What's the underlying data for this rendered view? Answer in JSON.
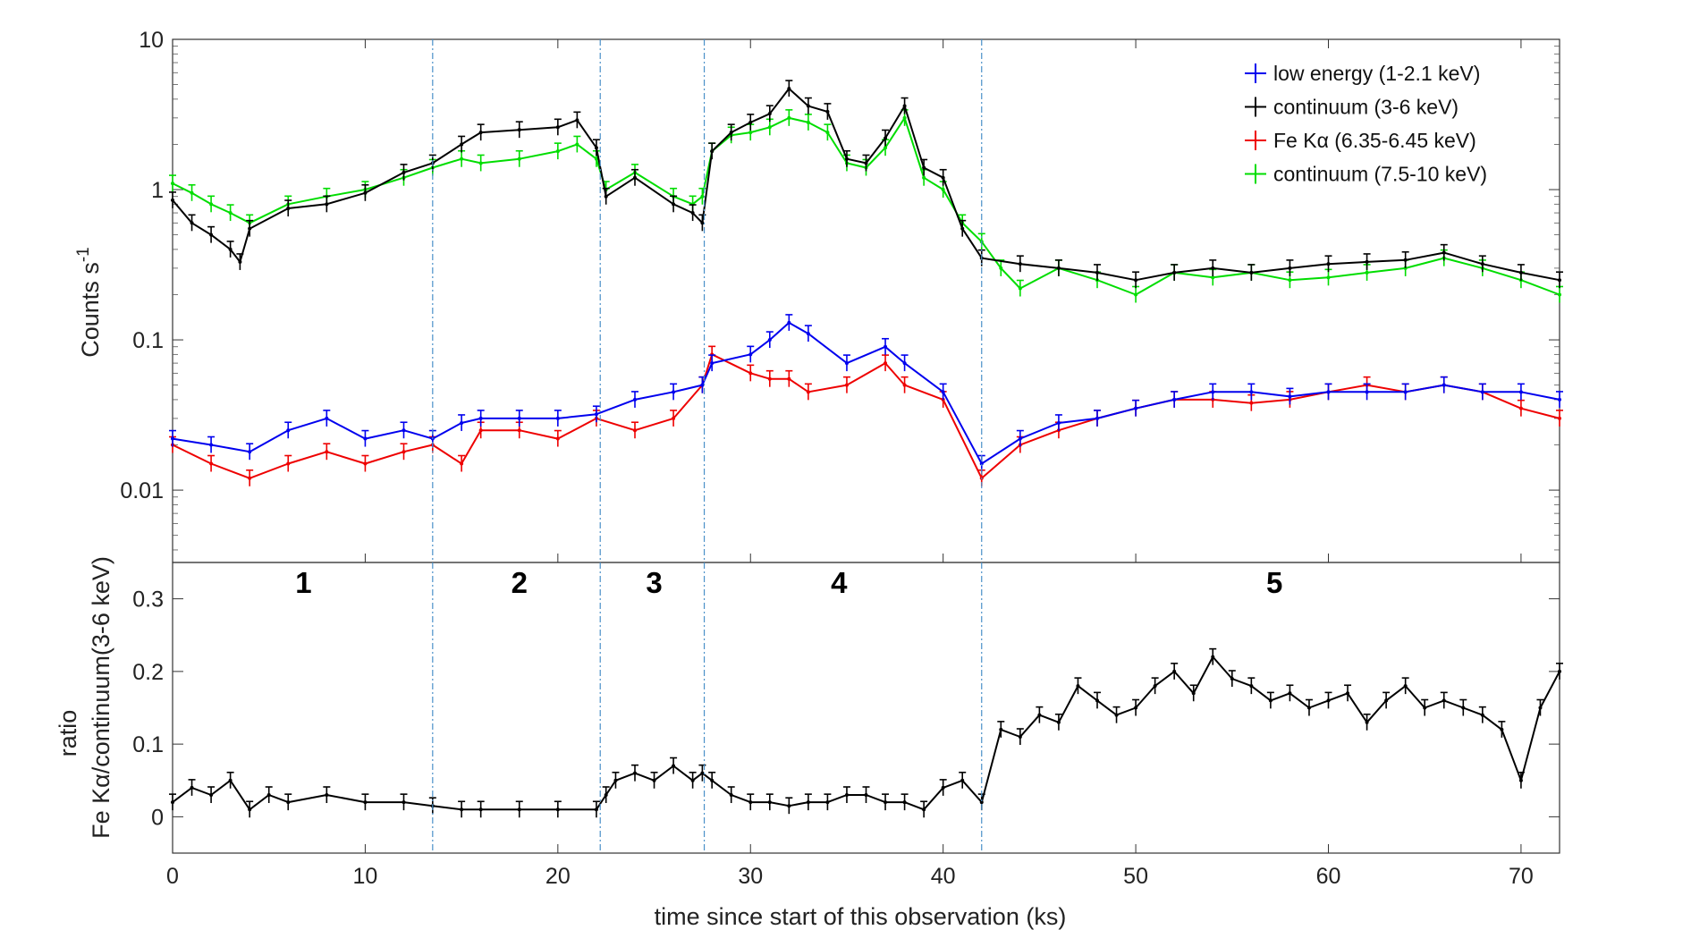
{
  "chart_data": {
    "type": "line",
    "xlabel": "time since start of this observation (ks)",
    "x_ticks": [
      0,
      10,
      20,
      30,
      40,
      50,
      60,
      70
    ],
    "xlim": [
      0,
      72
    ],
    "top_panel": {
      "ylabel": "Counts s",
      "ylabel_superscript": "-1",
      "yscale": "log",
      "ylim": [
        0.0033,
        10
      ],
      "y_ticks": [
        {
          "value": 0.01,
          "label": "0.01"
        },
        {
          "value": 0.1,
          "label": "0.1"
        },
        {
          "value": 1,
          "label": "1"
        },
        {
          "value": 10,
          "label": "10"
        }
      ],
      "legend_position": "top-right",
      "series": [
        {
          "name": "low energy (1-2.1 keV)",
          "color": "#0000ee",
          "x": [
            0,
            2,
            4,
            6,
            8,
            10,
            12,
            13.5,
            15,
            16,
            18,
            20,
            22,
            24,
            26,
            27.5,
            28,
            30,
            31,
            32,
            33,
            35,
            37,
            38,
            40,
            42,
            44,
            46,
            48,
            50,
            52,
            54,
            56,
            58,
            60,
            62,
            64,
            66,
            68,
            70,
            72
          ],
          "y": [
            0.022,
            0.02,
            0.018,
            0.025,
            0.03,
            0.022,
            0.025,
            0.022,
            0.028,
            0.03,
            0.03,
            0.03,
            0.032,
            0.04,
            0.045,
            0.05,
            0.07,
            0.08,
            0.1,
            0.13,
            0.11,
            0.07,
            0.09,
            0.07,
            0.045,
            0.015,
            0.022,
            0.028,
            0.03,
            0.035,
            0.04,
            0.045,
            0.045,
            0.042,
            0.045,
            0.045,
            0.045,
            0.05,
            0.045,
            0.045,
            0.04
          ]
        },
        {
          "name": "continuum (3-6 keV)",
          "color": "#000000",
          "x": [
            0,
            1,
            2,
            3,
            3.5,
            4,
            6,
            8,
            10,
            12,
            13.5,
            15,
            16,
            18,
            20,
            21,
            22,
            22.5,
            24,
            26,
            27,
            27.5,
            28,
            29,
            30,
            31,
            32,
            33,
            34,
            35,
            36,
            37,
            38,
            39,
            40,
            41,
            42,
            44,
            46,
            48,
            50,
            52,
            54,
            56,
            58,
            60,
            62,
            64,
            66,
            68,
            70,
            72
          ],
          "y": [
            0.85,
            0.6,
            0.5,
            0.4,
            0.33,
            0.55,
            0.75,
            0.8,
            0.95,
            1.3,
            1.5,
            2.0,
            2.4,
            2.5,
            2.6,
            2.9,
            1.9,
            0.9,
            1.2,
            0.8,
            0.7,
            0.6,
            1.8,
            2.4,
            2.8,
            3.2,
            4.7,
            3.6,
            3.3,
            1.6,
            1.5,
            2.2,
            3.6,
            1.4,
            1.2,
            0.55,
            0.35,
            0.32,
            0.3,
            0.28,
            0.25,
            0.28,
            0.3,
            0.28,
            0.3,
            0.32,
            0.33,
            0.34,
            0.38,
            0.32,
            0.28,
            0.25
          ]
        },
        {
          "name": "Fe Kα (6.35-6.45 keV)",
          "color": "#ee0000",
          "x": [
            0,
            2,
            4,
            6,
            8,
            10,
            12,
            13.5,
            15,
            16,
            18,
            20,
            22,
            24,
            26,
            27.5,
            28,
            30,
            31,
            32,
            33,
            35,
            37,
            38,
            40,
            42,
            44,
            46,
            48,
            50,
            52,
            54,
            56,
            58,
            60,
            62,
            64,
            66,
            68,
            70,
            72
          ],
          "y": [
            0.02,
            0.015,
            0.012,
            0.015,
            0.018,
            0.015,
            0.018,
            0.02,
            0.015,
            0.025,
            0.025,
            0.022,
            0.03,
            0.025,
            0.03,
            0.05,
            0.08,
            0.06,
            0.055,
            0.055,
            0.045,
            0.05,
            0.07,
            0.05,
            0.04,
            0.012,
            0.02,
            0.025,
            0.03,
            0.035,
            0.04,
            0.04,
            0.038,
            0.04,
            0.045,
            0.05,
            0.045,
            0.05,
            0.045,
            0.035,
            0.03
          ]
        },
        {
          "name": "continuum (7.5-10 keV)",
          "color": "#00dd00",
          "x": [
            0,
            1,
            2,
            3,
            4,
            6,
            8,
            10,
            12,
            13.5,
            15,
            16,
            18,
            20,
            21,
            22,
            22.5,
            24,
            26,
            27,
            27.5,
            28,
            29,
            30,
            31,
            32,
            33,
            34,
            35,
            36,
            37,
            38,
            39,
            40,
            41,
            42,
            43,
            44,
            46,
            48,
            50,
            52,
            54,
            56,
            58,
            60,
            62,
            64,
            66,
            68,
            70,
            72
          ],
          "y": [
            1.1,
            0.95,
            0.8,
            0.7,
            0.6,
            0.8,
            0.9,
            1.0,
            1.2,
            1.4,
            1.6,
            1.5,
            1.6,
            1.8,
            2.0,
            1.6,
            1.0,
            1.3,
            0.9,
            0.8,
            0.9,
            1.8,
            2.3,
            2.4,
            2.6,
            3.0,
            2.8,
            2.4,
            1.5,
            1.4,
            1.9,
            3.0,
            1.2,
            1.0,
            0.6,
            0.45,
            0.3,
            0.22,
            0.3,
            0.25,
            0.2,
            0.28,
            0.26,
            0.28,
            0.25,
            0.26,
            0.28,
            0.3,
            0.35,
            0.3,
            0.25,
            0.2
          ]
        }
      ]
    },
    "bottom_panel": {
      "ylabel_line1": "ratio",
      "ylabel_line2": "Fe Kα/continuum(3-6 keV)",
      "yscale": "linear",
      "ylim": [
        -0.05,
        0.35
      ],
      "y_ticks": [
        {
          "value": 0,
          "label": "0"
        },
        {
          "value": 0.1,
          "label": "0.1"
        },
        {
          "value": 0.2,
          "label": "0.2"
        },
        {
          "value": 0.3,
          "label": "0.3"
        }
      ],
      "series": [
        {
          "name": "Fe Kα/continuum(3-6 keV)",
          "color": "#000000",
          "x": [
            0,
            1,
            2,
            3,
            4,
            5,
            6,
            8,
            10,
            12,
            13.5,
            15,
            16,
            18,
            20,
            22,
            22.5,
            23,
            24,
            25,
            26,
            27,
            27.5,
            28,
            29,
            30,
            31,
            32,
            33,
            34,
            35,
            36,
            37,
            38,
            39,
            40,
            41,
            42,
            43,
            44,
            45,
            46,
            47,
            48,
            49,
            50,
            51,
            52,
            53,
            54,
            55,
            56,
            57,
            58,
            59,
            60,
            61,
            62,
            63,
            64,
            65,
            66,
            67,
            68,
            69,
            70,
            71,
            72
          ],
          "y": [
            0.02,
            0.04,
            0.03,
            0.05,
            0.01,
            0.03,
            0.02,
            0.03,
            0.02,
            0.02,
            0.015,
            0.01,
            0.01,
            0.01,
            0.01,
            0.01,
            0.03,
            0.05,
            0.06,
            0.05,
            0.07,
            0.05,
            0.06,
            0.05,
            0.03,
            0.02,
            0.02,
            0.015,
            0.02,
            0.02,
            0.03,
            0.03,
            0.02,
            0.02,
            0.01,
            0.04,
            0.05,
            0.02,
            0.12,
            0.11,
            0.14,
            0.13,
            0.18,
            0.16,
            0.14,
            0.15,
            0.18,
            0.2,
            0.17,
            0.22,
            0.19,
            0.18,
            0.16,
            0.17,
            0.15,
            0.16,
            0.17,
            0.13,
            0.16,
            0.18,
            0.15,
            0.16,
            0.15,
            0.14,
            0.12,
            0.05,
            0.15,
            0.2
          ]
        }
      ]
    },
    "boundaries_x": [
      13.5,
      22.2,
      27.6,
      42.0
    ],
    "segments": [
      {
        "label": "1",
        "x": 6.8
      },
      {
        "label": "2",
        "x": 18.0
      },
      {
        "label": "3",
        "x": 25.0
      },
      {
        "label": "4",
        "x": 34.6
      },
      {
        "label": "5",
        "x": 57.2
      }
    ],
    "boundary_color": "#4a90c8"
  }
}
